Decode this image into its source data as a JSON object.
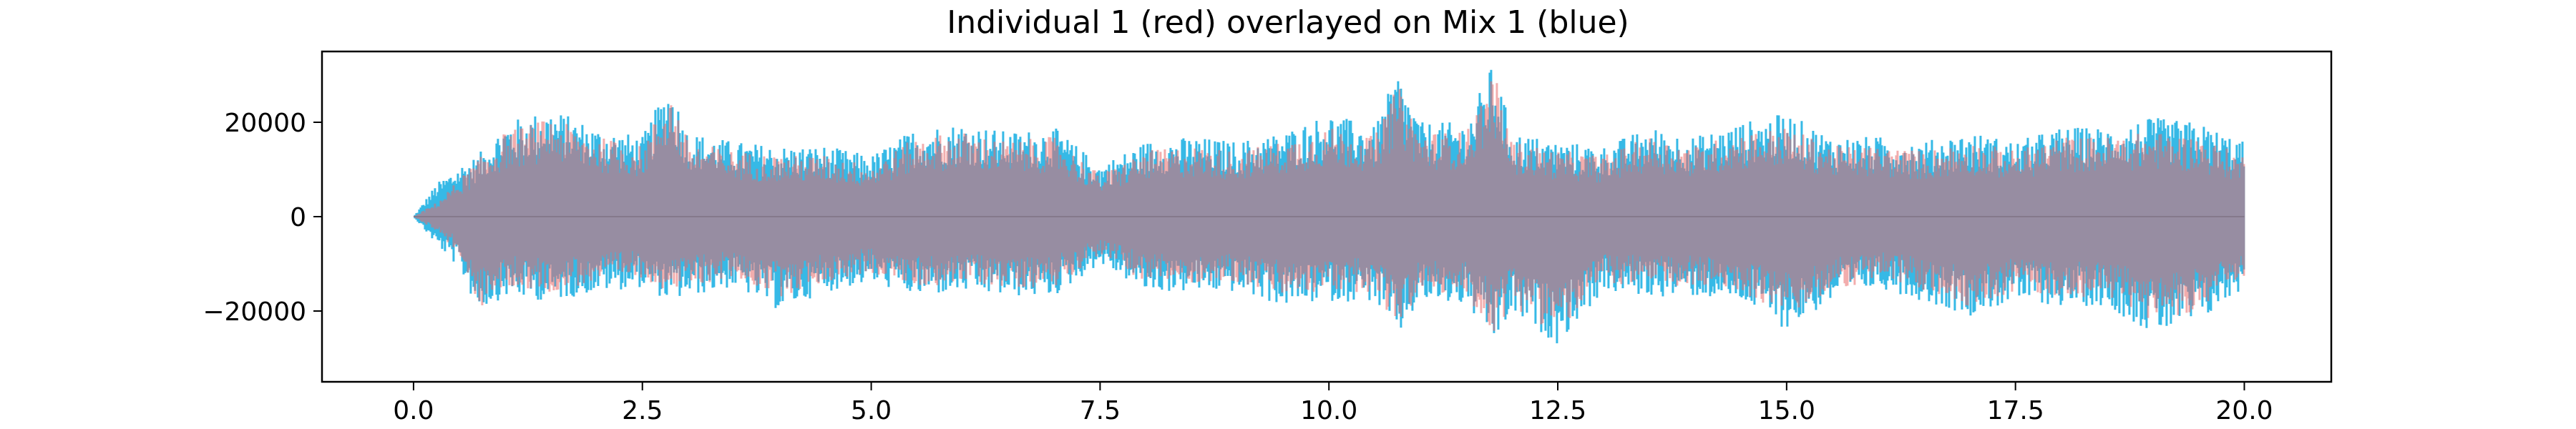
{
  "chart_data": {
    "type": "line",
    "title": "Individual 1 (red) overlayed on Mix 1 (blue)",
    "xlabel": "",
    "ylabel": "",
    "xlim": [
      -1.0,
      20.95
    ],
    "ylim": [
      -35000,
      35000
    ],
    "x_ticks": [
      0.0,
      2.5,
      5.0,
      7.5,
      10.0,
      12.5,
      15.0,
      17.5,
      20.0
    ],
    "x_tick_labels": [
      "0.0",
      "2.5",
      "5.0",
      "7.5",
      "10.0",
      "12.5",
      "15.0",
      "17.5",
      "20.0"
    ],
    "y_ticks": [
      -20000,
      0,
      20000
    ],
    "y_tick_labels": [
      "−20000",
      "0",
      "20000"
    ],
    "grid": false,
    "legend": "none",
    "series": [
      {
        "color": "#2bb5e5",
        "x": [
          0.0,
          0.25,
          0.5,
          0.7,
          1.0,
          1.5,
          2.0,
          2.5,
          2.8,
          3.0,
          3.5,
          4.0,
          4.5,
          5.0,
          5.5,
          6.0,
          6.5,
          7.0,
          7.5,
          8.0,
          8.5,
          9.0,
          9.5,
          10.0,
          10.5,
          10.75,
          11.0,
          11.5,
          11.8,
          12.0,
          12.5,
          13.0,
          13.5,
          14.0,
          14.5,
          15.0,
          15.5,
          16.0,
          16.5,
          17.0,
          17.5,
          18.0,
          18.5,
          19.0,
          19.5,
          20.0
        ],
        "max": [
          0,
          7000,
          11000,
          13000,
          20000,
          23000,
          19000,
          17000,
          29000,
          18000,
          16000,
          15000,
          15000,
          13000,
          19000,
          20000,
          18000,
          19000,
          11000,
          16000,
          17000,
          16000,
          18000,
          22000,
          19000,
          31000,
          20000,
          20000,
          33000,
          18000,
          16000,
          15000,
          19000,
          17000,
          20000,
          22000,
          17000,
          17000,
          16000,
          18000,
          16000,
          19000,
          19000,
          21000,
          20000,
          16000
        ],
        "min": [
          0,
          -6000,
          -11000,
          -20000,
          -17000,
          -18000,
          -16000,
          -15000,
          -18000,
          -17000,
          -15000,
          -20000,
          -16000,
          -14000,
          -17000,
          -16000,
          -17000,
          -17000,
          -10000,
          -16000,
          -16000,
          -16000,
          -19000,
          -18000,
          -18000,
          -26000,
          -18000,
          -19000,
          -27000,
          -21000,
          -27000,
          -16000,
          -17000,
          -17000,
          -18000,
          -24000,
          -18000,
          -15000,
          -18000,
          -21000,
          -18000,
          -19000,
          -19000,
          -25000,
          -23000,
          -15000
        ]
      },
      {
        "color": "#e86a6a",
        "x": [
          0.0,
          0.25,
          0.5,
          0.7,
          1.0,
          1.5,
          2.0,
          2.5,
          2.8,
          3.0,
          3.5,
          4.0,
          4.5,
          5.0,
          5.5,
          6.0,
          6.5,
          7.0,
          7.5,
          8.0,
          8.5,
          9.0,
          9.5,
          10.0,
          10.5,
          10.75,
          11.0,
          11.5,
          11.8,
          12.0,
          12.5,
          13.0,
          13.5,
          14.0,
          14.5,
          15.0,
          15.5,
          16.0,
          16.5,
          17.0,
          17.5,
          18.0,
          18.5,
          19.0,
          19.5,
          20.0
        ],
        "max": [
          0,
          3000,
          8000,
          12000,
          18000,
          21000,
          17000,
          15000,
          27000,
          16000,
          14000,
          13000,
          13000,
          11000,
          17000,
          18000,
          16000,
          17000,
          9000,
          14000,
          15000,
          14000,
          16000,
          19000,
          17000,
          28000,
          18000,
          18000,
          31000,
          16000,
          14000,
          13000,
          17000,
          15000,
          18000,
          19000,
          15000,
          15000,
          14000,
          16000,
          14000,
          17000,
          17000,
          18000,
          17000,
          13000
        ],
        "min": [
          0,
          -3000,
          -8000,
          -20000,
          -15000,
          -16000,
          -14000,
          -13000,
          -16000,
          -15000,
          -13000,
          -17000,
          -14000,
          -12000,
          -15000,
          -14000,
          -15000,
          -15000,
          -8000,
          -14000,
          -14000,
          -14000,
          -17000,
          -16000,
          -16000,
          -24000,
          -16000,
          -17000,
          -25000,
          -19000,
          -25000,
          -14000,
          -15000,
          -15000,
          -16000,
          -21000,
          -16000,
          -13000,
          -16000,
          -19000,
          -16000,
          -17000,
          -17000,
          -22000,
          -20000,
          -13000
        ]
      }
    ],
    "overlap_color": "#85798b"
  }
}
